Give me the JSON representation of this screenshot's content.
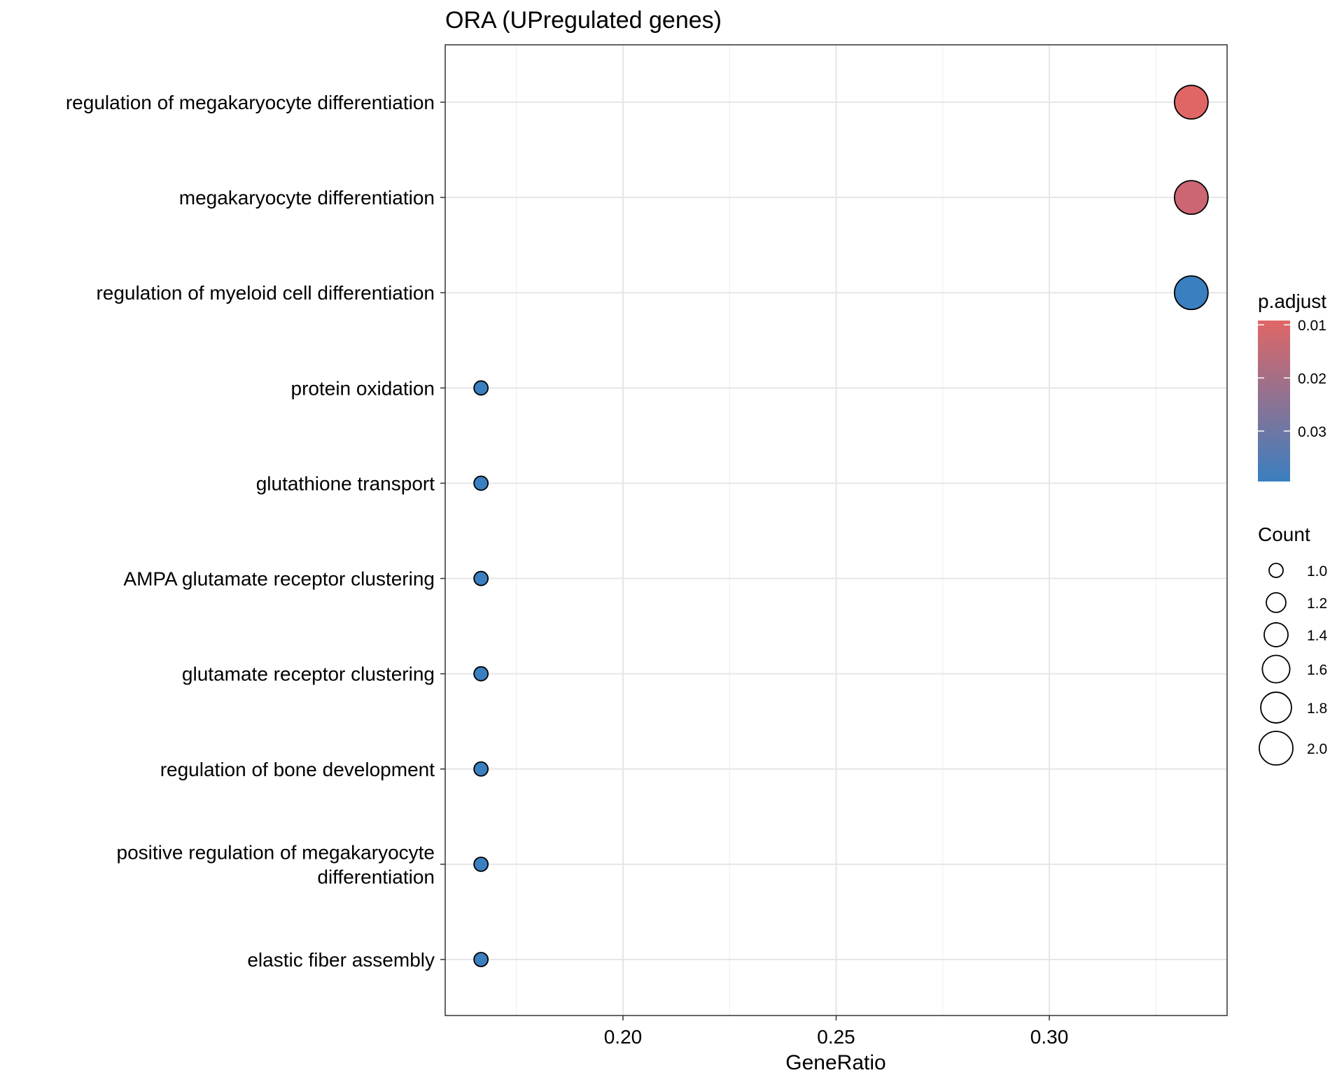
{
  "chart_data": {
    "type": "scatter",
    "title": "ORA (UPregulated genes)",
    "xlabel": "GeneRatio",
    "ylabel": "",
    "xlim": [
      0.1583,
      0.3417
    ],
    "x_ticks": [
      0.2,
      0.25,
      0.3
    ],
    "x_tick_labels": [
      "0.20",
      "0.25",
      "0.30"
    ],
    "grid": true,
    "points": [
      {
        "label": "regulation of megakaryocyte differentiation",
        "label_lines": [
          "regulation of megakaryocyte differentiation"
        ],
        "x": 0.3333,
        "count": 2,
        "p_adjust": 0.0092,
        "color": "#e06666"
      },
      {
        "label": "megakaryocyte differentiation",
        "label_lines": [
          "megakaryocyte differentiation"
        ],
        "x": 0.3333,
        "count": 2,
        "p_adjust": 0.0155,
        "color": "#cc6673"
      },
      {
        "label": "regulation of myeloid cell differentiation",
        "label_lines": [
          "regulation of myeloid cell differentiation"
        ],
        "x": 0.3333,
        "count": 2,
        "p_adjust": 0.0395,
        "color": "#3a7fc0"
      },
      {
        "label": "protein oxidation",
        "label_lines": [
          "protein oxidation"
        ],
        "x": 0.1667,
        "count": 1,
        "p_adjust": 0.0395,
        "color": "#3a7fc0"
      },
      {
        "label": "glutathione transport",
        "label_lines": [
          "glutathione transport"
        ],
        "x": 0.1667,
        "count": 1,
        "p_adjust": 0.0395,
        "color": "#3a7fc0"
      },
      {
        "label": "AMPA glutamate receptor clustering",
        "label_lines": [
          "AMPA glutamate receptor clustering"
        ],
        "x": 0.1667,
        "count": 1,
        "p_adjust": 0.0395,
        "color": "#3a7fc0"
      },
      {
        "label": "glutamate receptor clustering",
        "label_lines": [
          "glutamate receptor clustering"
        ],
        "x": 0.1667,
        "count": 1,
        "p_adjust": 0.0395,
        "color": "#3a7fc0"
      },
      {
        "label": "regulation of bone development",
        "label_lines": [
          "regulation of bone development"
        ],
        "x": 0.1667,
        "count": 1,
        "p_adjust": 0.0395,
        "color": "#3a7fc0"
      },
      {
        "label": "positive regulation of megakaryocyte differentiation",
        "label_lines": [
          "positive regulation of megakaryocyte",
          "differentiation"
        ],
        "x": 0.1667,
        "count": 1,
        "p_adjust": 0.0395,
        "color": "#3a7fc0"
      },
      {
        "label": "elastic fiber assembly",
        "label_lines": [
          "elastic fiber assembly"
        ],
        "x": 0.1667,
        "count": 1,
        "p_adjust": 0.0395,
        "color": "#3a7fc0"
      }
    ],
    "legend": {
      "placement": "right",
      "color": {
        "title": "p.adjust",
        "range": [
          0.0092,
          0.0395
        ],
        "colors": [
          "#e06666",
          "#3a7fc0"
        ],
        "ticks": [
          0.01,
          0.02,
          0.03
        ],
        "tick_labels": [
          "0.01",
          "0.02",
          "0.03"
        ]
      },
      "size": {
        "title": "Count",
        "range": [
          1,
          2
        ],
        "values": [
          1.0,
          1.2,
          1.4,
          1.6,
          1.8,
          2.0
        ],
        "labels": [
          "1.0",
          "1.2",
          "1.4",
          "1.6",
          "1.8",
          "2.0"
        ]
      }
    }
  }
}
